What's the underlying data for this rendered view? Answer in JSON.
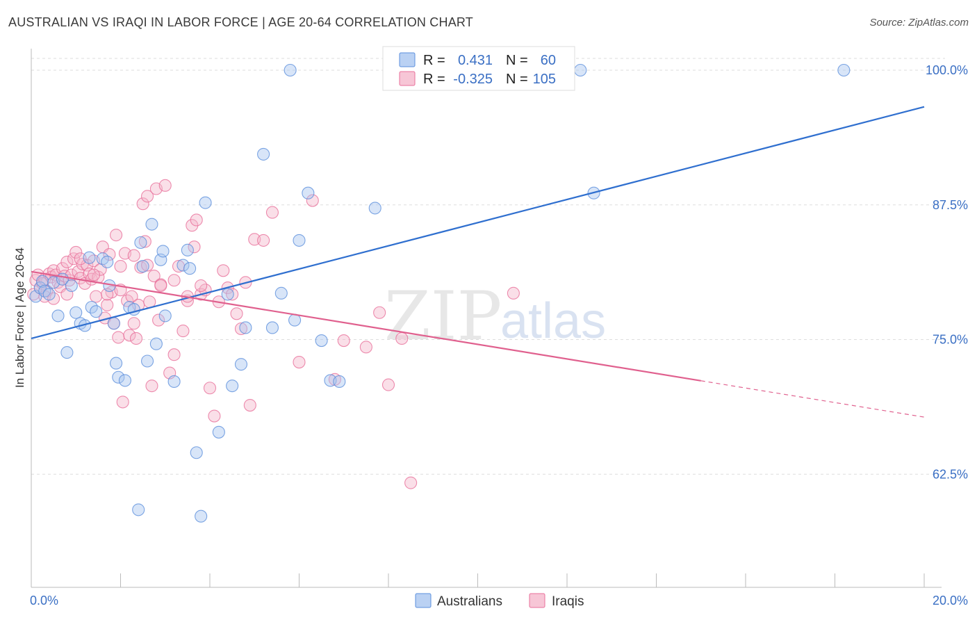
{
  "header": {
    "title": "AUSTRALIAN VS IRAQI IN LABOR FORCE | AGE 20-64 CORRELATION CHART",
    "source": "Source: ZipAtlas.com"
  },
  "watermark": {
    "zip": "ZIP",
    "atlas": "atlas"
  },
  "colors": {
    "australians": "#5b8fdc",
    "australians_fill": "#a9c6f0",
    "iraqis": "#e86f9a",
    "iraqis_fill": "#f5b8cc",
    "axis_label": "#3a6fc4",
    "grid": "#dddddd"
  },
  "legend_top": {
    "rows": [
      {
        "r_label": "R =",
        "r_value": "0.431",
        "n_label": "N =",
        "n_value": "60"
      },
      {
        "r_label": "R =",
        "r_value": "-0.325",
        "n_label": "N =",
        "n_value": "105"
      }
    ]
  },
  "legend_bottom": {
    "items": [
      "Australians",
      "Iraqis"
    ]
  },
  "chart_data": {
    "type": "scatter",
    "title": "AUSTRALIAN VS IRAQI IN LABOR FORCE | AGE 20-64 CORRELATION CHART",
    "xlabel": "",
    "ylabel": "In Labor Force | Age 20-64",
    "xlim": [
      0,
      20
    ],
    "ylim": [
      52,
      102
    ],
    "x_tick_labels": [
      "0.0%",
      "20.0%"
    ],
    "y_ticks": [
      62.5,
      75.0,
      87.5,
      100.0
    ],
    "y_tick_labels": [
      "62.5%",
      "75.0%",
      "87.5%",
      "100.0%"
    ],
    "grid": true,
    "legend_position": "top-center",
    "series": [
      {
        "name": "Australians",
        "r": 0.431,
        "n": 60,
        "trend": {
          "x": [
            0,
            20
          ],
          "y": [
            75.1,
            96.6
          ],
          "dashed_from": null
        },
        "points": [
          [
            0.1,
            79.0
          ],
          [
            0.2,
            79.8
          ],
          [
            0.25,
            80.4
          ],
          [
            0.3,
            79.5
          ],
          [
            0.4,
            79.2
          ],
          [
            0.5,
            80.3
          ],
          [
            0.6,
            77.2
          ],
          [
            0.7,
            80.6
          ],
          [
            0.8,
            73.8
          ],
          [
            0.9,
            80.0
          ],
          [
            1.0,
            77.5
          ],
          [
            1.1,
            76.5
          ],
          [
            1.2,
            76.3
          ],
          [
            1.3,
            82.6
          ],
          [
            1.35,
            78.0
          ],
          [
            1.45,
            77.6
          ],
          [
            1.6,
            82.5
          ],
          [
            1.7,
            82.2
          ],
          [
            1.75,
            80.0
          ],
          [
            1.85,
            76.5
          ],
          [
            1.9,
            72.8
          ],
          [
            1.95,
            71.5
          ],
          [
            2.1,
            71.2
          ],
          [
            2.2,
            78.0
          ],
          [
            2.3,
            77.8
          ],
          [
            2.4,
            59.2
          ],
          [
            2.45,
            84.0
          ],
          [
            2.5,
            81.8
          ],
          [
            2.6,
            73.0
          ],
          [
            2.7,
            85.7
          ],
          [
            2.8,
            74.6
          ],
          [
            2.9,
            82.4
          ],
          [
            2.95,
            83.2
          ],
          [
            3.0,
            77.2
          ],
          [
            3.2,
            71.1
          ],
          [
            3.4,
            81.9
          ],
          [
            3.5,
            83.3
          ],
          [
            3.55,
            81.6
          ],
          [
            3.7,
            64.5
          ],
          [
            3.8,
            58.6
          ],
          [
            3.9,
            87.7
          ],
          [
            4.2,
            66.4
          ],
          [
            4.4,
            79.2
          ],
          [
            4.5,
            70.7
          ],
          [
            4.7,
            72.7
          ],
          [
            4.8,
            76.1
          ],
          [
            5.2,
            92.2
          ],
          [
            5.4,
            76.1
          ],
          [
            5.6,
            79.3
          ],
          [
            5.8,
            100.0
          ],
          [
            5.9,
            76.8
          ],
          [
            6.0,
            84.2
          ],
          [
            6.2,
            88.6
          ],
          [
            6.5,
            74.9
          ],
          [
            6.7,
            71.2
          ],
          [
            6.9,
            71.1
          ],
          [
            7.7,
            87.2
          ],
          [
            12.3,
            100.0
          ],
          [
            12.6,
            88.6
          ],
          [
            18.2,
            100.0
          ]
        ]
      },
      {
        "name": "Iraqis",
        "r": -0.325,
        "n": 105,
        "trend": {
          "x": [
            0,
            20
          ],
          "y": [
            81.3,
            67.8
          ],
          "dashed_from": 15.0
        },
        "points": [
          [
            0.05,
            79.2
          ],
          [
            0.1,
            80.5
          ],
          [
            0.15,
            81.0
          ],
          [
            0.2,
            79.8
          ],
          [
            0.25,
            80.2
          ],
          [
            0.3,
            80.6
          ],
          [
            0.35,
            79.5
          ],
          [
            0.4,
            81.1
          ],
          [
            0.45,
            80.8
          ],
          [
            0.5,
            81.4
          ],
          [
            0.55,
            81.0
          ],
          [
            0.6,
            80.3
          ],
          [
            0.65,
            79.9
          ],
          [
            0.7,
            81.6
          ],
          [
            0.75,
            80.9
          ],
          [
            0.8,
            82.2
          ],
          [
            0.85,
            80.5
          ],
          [
            0.9,
            81.0
          ],
          [
            0.95,
            82.5
          ],
          [
            1.0,
            83.1
          ],
          [
            1.05,
            81.3
          ],
          [
            1.1,
            80.7
          ],
          [
            1.15,
            82.0
          ],
          [
            1.2,
            80.2
          ],
          [
            1.25,
            81.9
          ],
          [
            1.3,
            81.1
          ],
          [
            1.35,
            80.6
          ],
          [
            1.4,
            82.3
          ],
          [
            1.45,
            79.0
          ],
          [
            1.5,
            80.8
          ],
          [
            1.55,
            81.5
          ],
          [
            1.6,
            83.6
          ],
          [
            1.65,
            77.0
          ],
          [
            1.7,
            78.2
          ],
          [
            1.75,
            82.9
          ],
          [
            1.8,
            79.4
          ],
          [
            1.85,
            76.5
          ],
          [
            1.9,
            84.7
          ],
          [
            1.95,
            75.2
          ],
          [
            2.0,
            81.8
          ],
          [
            2.05,
            69.2
          ],
          [
            2.1,
            83.0
          ],
          [
            2.15,
            78.6
          ],
          [
            2.2,
            75.4
          ],
          [
            2.25,
            79.0
          ],
          [
            2.3,
            82.8
          ],
          [
            2.35,
            75.1
          ],
          [
            2.4,
            78.2
          ],
          [
            2.45,
            81.7
          ],
          [
            2.5,
            87.6
          ],
          [
            2.55,
            84.1
          ],
          [
            2.6,
            88.3
          ],
          [
            2.65,
            78.5
          ],
          [
            2.7,
            70.7
          ],
          [
            2.75,
            80.9
          ],
          [
            2.8,
            89.0
          ],
          [
            2.85,
            76.8
          ],
          [
            2.9,
            80.1
          ],
          [
            3.0,
            89.3
          ],
          [
            3.1,
            71.9
          ],
          [
            3.2,
            73.6
          ],
          [
            3.3,
            81.8
          ],
          [
            3.4,
            75.8
          ],
          [
            3.5,
            78.6
          ],
          [
            3.6,
            85.6
          ],
          [
            3.65,
            83.6
          ],
          [
            3.7,
            86.1
          ],
          [
            3.8,
            79.2
          ],
          [
            3.9,
            79.6
          ],
          [
            4.0,
            70.5
          ],
          [
            4.1,
            67.9
          ],
          [
            4.2,
            78.5
          ],
          [
            4.3,
            81.4
          ],
          [
            4.4,
            79.8
          ],
          [
            4.5,
            79.2
          ],
          [
            4.6,
            77.4
          ],
          [
            4.7,
            76.0
          ],
          [
            4.8,
            80.3
          ],
          [
            4.9,
            68.9
          ],
          [
            5.0,
            84.3
          ],
          [
            5.2,
            84.2
          ],
          [
            5.4,
            86.8
          ],
          [
            6.0,
            72.9
          ],
          [
            6.3,
            87.9
          ],
          [
            6.8,
            71.3
          ],
          [
            7.0,
            74.9
          ],
          [
            7.5,
            74.3
          ],
          [
            7.8,
            77.5
          ],
          [
            8.0,
            70.8
          ],
          [
            8.3,
            75.1
          ],
          [
            8.5,
            61.7
          ],
          [
            10.8,
            79.3
          ],
          [
            0.3,
            79.0
          ],
          [
            0.5,
            78.8
          ],
          [
            0.8,
            79.2
          ],
          [
            1.1,
            82.5
          ],
          [
            1.4,
            81.0
          ],
          [
            1.7,
            79.2
          ],
          [
            2.0,
            79.6
          ],
          [
            2.3,
            76.5
          ],
          [
            2.6,
            81.9
          ],
          [
            2.9,
            80.0
          ],
          [
            3.2,
            80.5
          ],
          [
            3.5,
            79.0
          ],
          [
            3.8,
            80.0
          ]
        ]
      }
    ]
  }
}
